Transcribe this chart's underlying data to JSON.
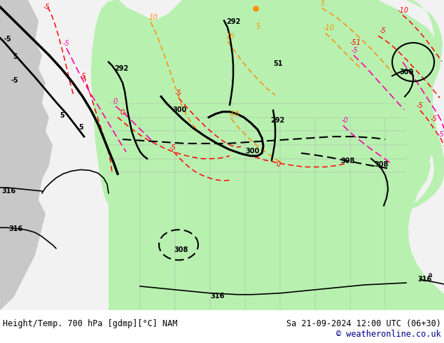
{
  "title_left": "Height/Temp. 700 hPa [gdmp][°C] NAM",
  "title_right": "Sa 21-09-2024 12:00 UTC (06+30)",
  "copyright": "© weatheronline.co.uk",
  "bg_color": "#f0f0f0",
  "map_bg": "#f0f0f0",
  "bottom_bar_color": "#ffffff",
  "text_color": "#000000",
  "copyright_color": "#00008b",
  "title_fontsize": 8.5,
  "copyright_fontsize": 8.5,
  "figsize": [
    6.34,
    4.9
  ],
  "dpi": 100,
  "light_green": "#b8f0b0",
  "gray_land": "#c8c8c8",
  "map_area_bg": "#f0f0f0"
}
